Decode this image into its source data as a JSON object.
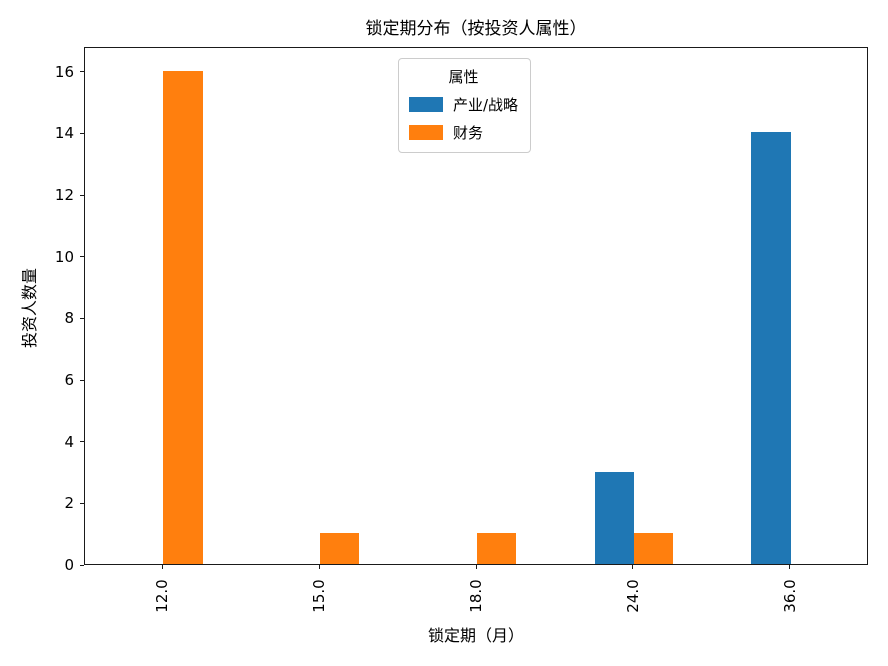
{
  "chart_data": {
    "type": "bar",
    "title": "锁定期分布（按投资人属性）",
    "xlabel": "锁定期（月）",
    "ylabel": "投资人数量",
    "categories": [
      "12.0",
      "15.0",
      "18.0",
      "24.0",
      "36.0"
    ],
    "series": [
      {
        "name": "产业/战略",
        "color": "#1f77b4",
        "values": [
          0,
          0,
          0,
          3,
          14
        ]
      },
      {
        "name": "财务",
        "color": "#ff7f0e",
        "values": [
          16,
          1,
          1,
          1,
          0
        ]
      }
    ],
    "ylim": [
      0,
      16.8
    ],
    "yticks": [
      0,
      2,
      4,
      6,
      8,
      10,
      12,
      14,
      16
    ],
    "legend_title": "属性",
    "legend_position": "upper center",
    "grid": false,
    "bar_group_width": 0.5,
    "background": "#ffffff",
    "spine_color": "#1a1a1a"
  }
}
